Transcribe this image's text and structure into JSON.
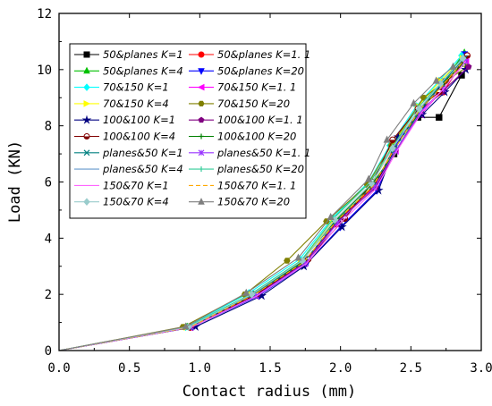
{
  "chart_data": {
    "type": "line",
    "xlabel": "Contact radius (mm)",
    "ylabel": "Load (KN)",
    "xlim": [
      0.0,
      3.0
    ],
    "ylim": [
      0,
      12
    ],
    "xticks": [
      "0.0",
      "0.5",
      "1.0",
      "1.5",
      "2.0",
      "2.5",
      "3.0"
    ],
    "yticks": [
      "0",
      "2",
      "4",
      "6",
      "8",
      "10",
      "12"
    ],
    "grid": false,
    "legend_position": "top-left",
    "series": [
      {
        "name": "50&planes K=1",
        "color": "#000000",
        "marker": "square",
        "dash": "solid",
        "x": [
          0,
          0.92,
          1.38,
          1.75,
          1.98,
          2.24,
          2.38,
          2.55,
          2.7,
          2.86
        ],
        "y": [
          0,
          0.85,
          2.0,
          3.2,
          4.6,
          5.9,
          7.0,
          8.3,
          8.3,
          9.8
        ]
      },
      {
        "name": "50&planes K=1. 1",
        "color": "#ff0000",
        "marker": "circle",
        "dash": "solid",
        "x": [
          0,
          0.93,
          1.4,
          1.73,
          1.96,
          2.23,
          2.38,
          2.55,
          2.73,
          2.9
        ],
        "y": [
          0,
          0.82,
          2.0,
          3.1,
          4.5,
          5.8,
          7.2,
          8.5,
          9.2,
          10.5
        ]
      },
      {
        "name": "50&planes K=4",
        "color": "#00c000",
        "marker": "triangle-up",
        "dash": "solid",
        "x": [
          0,
          0.91,
          1.36,
          1.72,
          1.95,
          2.21,
          2.37,
          2.56,
          2.72,
          2.88
        ],
        "y": [
          0,
          0.84,
          2.0,
          3.2,
          4.7,
          6.0,
          7.2,
          8.6,
          9.5,
          10.6
        ]
      },
      {
        "name": "50&planes K=20",
        "color": "#0000ff",
        "marker": "triangle-down",
        "dash": "solid",
        "x": [
          0,
          0.95,
          1.42,
          1.76,
          2.0,
          2.26,
          2.4,
          2.58,
          2.74,
          2.88
        ],
        "y": [
          0,
          0.86,
          1.95,
          3.1,
          4.4,
          5.7,
          7.4,
          8.6,
          9.6,
          10.55
        ]
      },
      {
        "name": "70&150 K=1",
        "color": "#00ffff",
        "marker": "diamond",
        "dash": "solid",
        "x": [
          0,
          0.9,
          1.35,
          1.71,
          1.94,
          2.2,
          2.35,
          2.54,
          2.7,
          2.86
        ],
        "y": [
          0,
          0.84,
          2.05,
          3.25,
          4.7,
          6.0,
          7.3,
          8.7,
          9.6,
          10.5
        ]
      },
      {
        "name": "70&150 K=1. 1",
        "color": "#ff00ff",
        "marker": "triangle-left",
        "dash": "solid",
        "x": [
          0,
          0.93,
          1.39,
          1.74,
          1.97,
          2.24,
          2.39,
          2.57,
          2.73,
          2.89
        ],
        "y": [
          0,
          0.82,
          1.95,
          3.1,
          4.5,
          5.8,
          7.1,
          8.4,
          9.3,
          10.3
        ]
      },
      {
        "name": "70&150 K=4",
        "color": "#ffff00",
        "marker": "triangle-right",
        "dash": "solid",
        "x": [
          0,
          0.91,
          1.37,
          1.72,
          1.95,
          2.22,
          2.37,
          2.55,
          2.71,
          2.87
        ],
        "y": [
          0,
          0.83,
          2.0,
          3.2,
          4.6,
          5.9,
          7.3,
          8.7,
          9.6,
          10.4
        ]
      },
      {
        "name": "70&150 K=20",
        "color": "#808000",
        "marker": "hexagon",
        "dash": "solid",
        "x": [
          0,
          0.88,
          1.32,
          1.62,
          1.9,
          2.19,
          2.36,
          2.59,
          2.75,
          2.9
        ],
        "y": [
          0,
          0.84,
          2.0,
          3.2,
          4.6,
          5.9,
          7.3,
          9.0,
          9.6,
          10.1
        ]
      },
      {
        "name": "100&100 K=1",
        "color": "#000080",
        "marker": "star",
        "dash": "solid",
        "x": [
          0,
          0.97,
          1.44,
          1.74,
          2.01,
          2.27,
          2.41,
          2.58,
          2.74,
          2.89
        ],
        "y": [
          0,
          0.85,
          1.95,
          3.0,
          4.4,
          5.7,
          7.6,
          8.4,
          9.2,
          10.0
        ]
      },
      {
        "name": "100&100 K=1. 1",
        "color": "#800080",
        "marker": "pentagon",
        "dash": "solid",
        "x": [
          0,
          0.94,
          1.41,
          1.75,
          1.98,
          2.25,
          2.39,
          2.57,
          2.72,
          2.91
        ],
        "y": [
          0,
          0.84,
          2.0,
          3.15,
          4.6,
          5.8,
          7.1,
          8.5,
          9.2,
          10.1
        ]
      },
      {
        "name": "100&100 K=4",
        "color": "#800000",
        "marker": "circle-half",
        "dash": "solid",
        "x": [
          0,
          0.93,
          1.4,
          1.77,
          2.03,
          2.23,
          2.37,
          2.55,
          2.7,
          2.9
        ],
        "y": [
          0,
          0.83,
          2.0,
          3.25,
          4.7,
          6.0,
          7.5,
          8.6,
          9.2,
          10.5
        ]
      },
      {
        "name": "100&100 K=20",
        "color": "#008000",
        "marker": "plus",
        "dash": "solid",
        "x": [
          0,
          0.92,
          1.36,
          1.71,
          1.96,
          2.22,
          2.38,
          2.56,
          2.72,
          2.87
        ],
        "y": [
          0,
          0.83,
          1.95,
          3.1,
          4.6,
          5.9,
          7.0,
          8.5,
          9.5,
          10.2
        ]
      },
      {
        "name": "planes&50 K=1",
        "color": "#008080",
        "marker": "x",
        "dash": "solid",
        "x": [
          0,
          0.93,
          1.38,
          1.74,
          1.97,
          2.23,
          2.38,
          2.57,
          2.72,
          2.88
        ],
        "y": [
          0,
          0.84,
          2.0,
          3.15,
          4.6,
          5.85,
          7.15,
          8.6,
          9.5,
          10.4
        ]
      },
      {
        "name": "planes&50 K=1. 1",
        "color": "#9933ff",
        "marker": "asterisk",
        "dash": "solid",
        "x": [
          0,
          0.94,
          1.4,
          1.75,
          1.98,
          2.24,
          2.39,
          2.57,
          2.73,
          2.89
        ],
        "y": [
          0,
          0.83,
          1.95,
          3.1,
          4.55,
          5.8,
          7.1,
          8.5,
          9.3,
          10.3
        ]
      },
      {
        "name": "planes&50 K=4",
        "color": "#6699cc",
        "marker": "none",
        "dash": "solid",
        "x": [
          0,
          0.92,
          1.37,
          1.73,
          1.96,
          2.22,
          2.37,
          2.56,
          2.71,
          2.87
        ],
        "y": [
          0,
          0.84,
          2.0,
          3.2,
          4.65,
          5.95,
          7.2,
          8.6,
          9.5,
          10.4
        ]
      },
      {
        "name": "planes&50 K=20",
        "color": "#33cc99",
        "marker": "tick",
        "dash": "solid",
        "x": [
          0,
          0.91,
          1.36,
          1.72,
          1.95,
          2.21,
          2.37,
          2.55,
          2.71,
          2.87
        ],
        "y": [
          0,
          0.84,
          2.0,
          3.2,
          4.7,
          6.0,
          7.25,
          8.65,
          9.5,
          10.45
        ]
      },
      {
        "name": "150&70 K=1",
        "color": "#ff66ff",
        "marker": "none",
        "dash": "solid",
        "x": [
          0,
          0.94,
          1.41,
          1.76,
          1.99,
          2.25,
          2.4,
          2.58,
          2.73,
          2.89
        ],
        "y": [
          0,
          0.83,
          1.95,
          3.1,
          4.5,
          5.75,
          7.1,
          8.5,
          9.3,
          10.3
        ]
      },
      {
        "name": "150&70 K=1. 1",
        "color": "#ffaa00",
        "marker": "none",
        "dash": "dashed",
        "x": [
          0,
          0.93,
          1.39,
          1.74,
          1.97,
          2.23,
          2.38,
          2.56,
          2.72,
          2.88
        ],
        "y": [
          0,
          0.83,
          2.0,
          3.15,
          4.6,
          5.85,
          7.15,
          8.55,
          9.4,
          10.35
        ]
      },
      {
        "name": "150&70 K=4",
        "color": "#99cccc",
        "marker": "diamond",
        "dash": "solid",
        "x": [
          0,
          0.92,
          1.37,
          1.73,
          1.96,
          2.22,
          2.37,
          2.56,
          2.71,
          2.87
        ],
        "y": [
          0,
          0.84,
          2.0,
          3.2,
          4.65,
          5.95,
          7.2,
          8.6,
          9.5,
          10.4
        ]
      },
      {
        "name": "150&70 K=20",
        "color": "#7f7f7f",
        "marker": "triangle-up",
        "dash": "solid",
        "x": [
          0,
          0.9,
          1.33,
          1.7,
          1.93,
          2.2,
          2.33,
          2.52,
          2.68,
          2.8
        ],
        "y": [
          0,
          0.85,
          2.05,
          3.3,
          4.75,
          6.1,
          7.5,
          8.8,
          9.6,
          10.1
        ]
      }
    ]
  }
}
